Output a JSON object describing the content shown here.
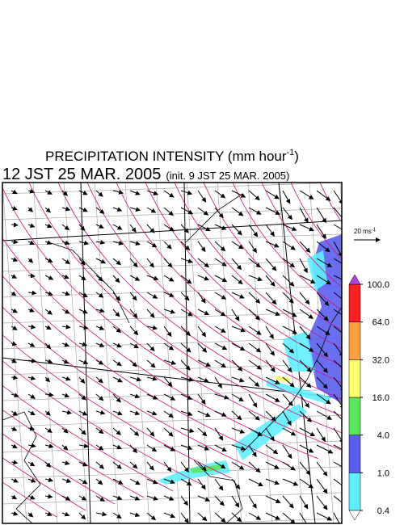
{
  "header": {
    "title": "PRECIPITATION INTENSITY (mm hour",
    "title_sup": "-1",
    "title_end": ")",
    "time": "12 JST 25 MAR. 2005",
    "init": "(init. 9 JST 25 MAR. 2005)"
  },
  "vector_scale": {
    "label": "20 ms",
    "sup": "-1"
  },
  "colorbar": {
    "ticks": [
      {
        "value": 0.4,
        "label": "0.4"
      },
      {
        "value": 1,
        "label": "1.0"
      },
      {
        "value": 4,
        "label": "4.0"
      },
      {
        "value": 16,
        "label": "16.0"
      },
      {
        "value": 32,
        "label": "32.0"
      },
      {
        "value": 64,
        "label": "64.0"
      },
      {
        "value": 100,
        "label": "100.0"
      }
    ],
    "colors": [
      "#5ff0ff",
      "#5a5ef0",
      "#5ce65c",
      "#ffff6e",
      "#ffa040",
      "#ff1e1e"
    ],
    "under_color": "#ffffff",
    "over_color": "#b040e0"
  }
}
